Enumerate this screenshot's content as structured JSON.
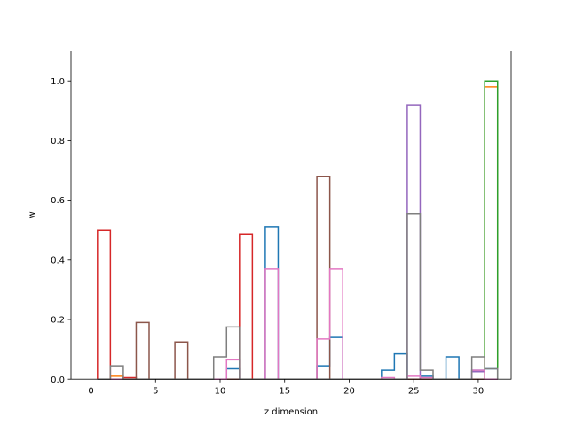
{
  "chart_data": {
    "type": "histogram-step",
    "title": "",
    "xlabel": "z dimension",
    "ylabel": "w",
    "xlim": [
      -1.55,
      32.55
    ],
    "ylim": [
      0,
      1.1
    ],
    "bin_start": 0.5,
    "bin_width": 1,
    "bin_count": 31,
    "xticks": [
      {
        "value": 0,
        "label": "0"
      },
      {
        "value": 5,
        "label": "5"
      },
      {
        "value": 10,
        "label": "10"
      },
      {
        "value": 15,
        "label": "15"
      },
      {
        "value": 20,
        "label": "20"
      },
      {
        "value": 25,
        "label": "25"
      },
      {
        "value": 30,
        "label": "30"
      }
    ],
    "yticks": [
      {
        "value": 0.0,
        "label": "0.0"
      },
      {
        "value": 0.2,
        "label": "0.2"
      },
      {
        "value": 0.4,
        "label": "0.4"
      },
      {
        "value": 0.6,
        "label": "0.6"
      },
      {
        "value": 0.8,
        "label": "0.8"
      },
      {
        "value": 1.0,
        "label": "1.0"
      }
    ],
    "grid": false,
    "legend": false,
    "series": [
      {
        "color": "#1f77b4",
        "values": [
          0,
          0,
          0,
          0,
          0,
          0,
          0,
          0,
          0,
          0,
          0.035,
          0,
          0,
          0.51,
          0,
          0,
          0,
          0.045,
          0.14,
          0,
          0,
          0,
          0.03,
          0.085,
          0,
          0.01,
          0,
          0.075,
          0,
          0.03,
          0.035
        ]
      },
      {
        "color": "#ff7f0e",
        "values": [
          0,
          0.01,
          0,
          0,
          0,
          0,
          0,
          0,
          0,
          0,
          0,
          0,
          0,
          0,
          0,
          0,
          0,
          0,
          0,
          0,
          0,
          0,
          0,
          0,
          0,
          0,
          0,
          0,
          0,
          0,
          0.98
        ]
      },
      {
        "color": "#2ca02c",
        "values": [
          0,
          0,
          0,
          0,
          0,
          0,
          0,
          0,
          0,
          0,
          0,
          0,
          0,
          0,
          0,
          0,
          0,
          0,
          0,
          0,
          0,
          0,
          0,
          0,
          0,
          0,
          0,
          0,
          0,
          0,
          1.0
        ]
      },
      {
        "color": "#d62728",
        "values": [
          0.5,
          0,
          0.005,
          0,
          0,
          0,
          0,
          0,
          0,
          0,
          0,
          0.485,
          0,
          0,
          0,
          0,
          0,
          0,
          0,
          0,
          0,
          0,
          0,
          0,
          0,
          0,
          0,
          0,
          0,
          0,
          0
        ]
      },
      {
        "color": "#9467bd",
        "values": [
          0,
          0,
          0,
          0,
          0,
          0,
          0,
          0,
          0,
          0,
          0,
          0,
          0,
          0,
          0,
          0,
          0,
          0,
          0,
          0,
          0,
          0,
          0,
          0,
          0.92,
          0,
          0,
          0,
          0,
          0.025,
          0
        ]
      },
      {
        "color": "#8c564b",
        "values": [
          0,
          0,
          0,
          0.19,
          0,
          0,
          0.125,
          0,
          0,
          0,
          0,
          0,
          0,
          0,
          0,
          0,
          0,
          0.68,
          0,
          0,
          0,
          0,
          0,
          0,
          0,
          0,
          0,
          0,
          0,
          0,
          0
        ]
      },
      {
        "color": "#e377c2",
        "values": [
          0,
          0,
          0,
          0,
          0,
          0,
          0,
          0,
          0,
          0,
          0.065,
          0,
          0,
          0.37,
          0,
          0,
          0,
          0.135,
          0.37,
          0,
          0,
          0,
          0.005,
          0,
          0.01,
          0.005,
          0,
          0,
          0,
          0.03,
          0
        ]
      },
      {
        "color": "#7f7f7f",
        "values": [
          0,
          0.045,
          0,
          0,
          0,
          0,
          0,
          0,
          0,
          0.075,
          0.175,
          0,
          0,
          0,
          0,
          0,
          0,
          0,
          0,
          0,
          0,
          0,
          0,
          0,
          0.555,
          0.03,
          0,
          0,
          0,
          0.075,
          0.035
        ]
      }
    ]
  }
}
